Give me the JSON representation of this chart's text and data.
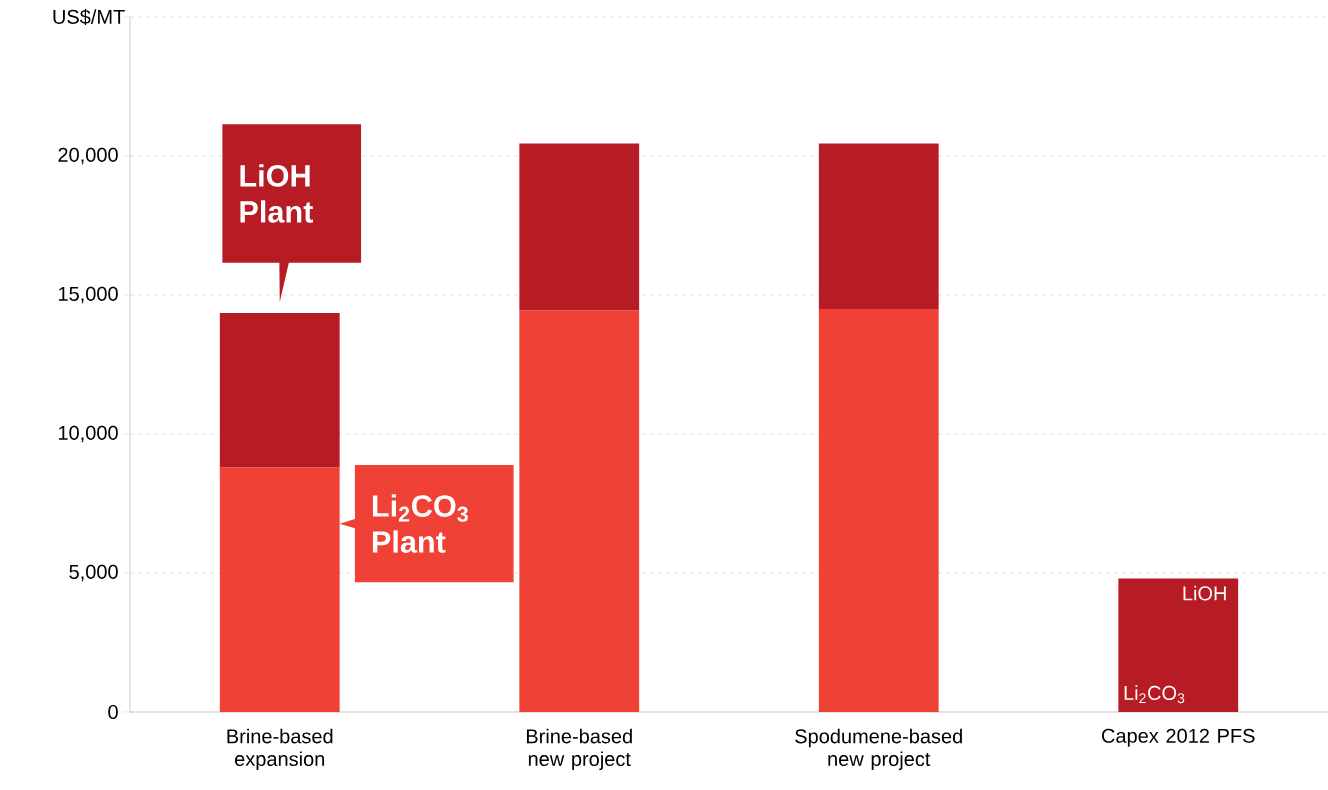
{
  "chart_data": {
    "type": "bar",
    "stacked": true,
    "ylabel": "US$/MT",
    "categories": [
      "Brine-based expansion",
      "Brine-based new project",
      "Spodumene-based new project",
      "Capex 2012 PFS"
    ],
    "series": [
      {
        "name": "Li$_{2}$CO$_{3}$ Plant",
        "color": "#ef4136",
        "values": [
          8800,
          14450,
          14500,
          null
        ]
      },
      {
        "name": "LiOH Plant",
        "color": "#b71c24",
        "values": [
          5550,
          6000,
          5950,
          null
        ]
      },
      {
        "color": "#b71c24",
        "values": [
          null,
          null,
          null,
          4800
        ]
      }
    ],
    "annotations": [
      "LiOH",
      "Li$_{2}$CO$_{3}$"
    ],
    "ylim": [
      0,
      25000
    ],
    "yticks": [
      0,
      {
        "value": 5000,
        "label": "5,000"
      },
      {
        "value": 10000,
        "label": "10,000"
      },
      {
        "value": 15000,
        "label": "15,000"
      },
      {
        "value": 20000,
        "label": "20,000"
      },
      {
        "value": 25000,
        "label": null
      }
    ],
    "grid": "y"
  }
}
